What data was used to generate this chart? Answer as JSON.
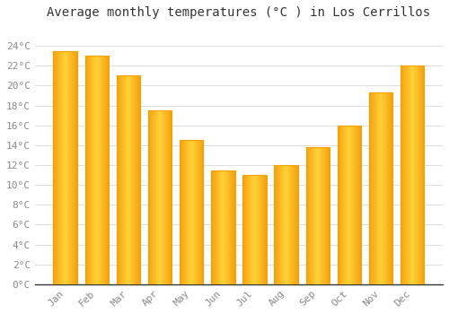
{
  "title": "Average monthly temperatures (°C ) in Los Cerrillos",
  "months": [
    "Jan",
    "Feb",
    "Mar",
    "Apr",
    "May",
    "Jun",
    "Jul",
    "Aug",
    "Sep",
    "Oct",
    "Nov",
    "Dec"
  ],
  "values": [
    23.5,
    23.0,
    21.0,
    17.5,
    14.5,
    11.5,
    11.0,
    12.0,
    13.8,
    16.0,
    19.3,
    22.0
  ],
  "bar_color_center": "#FFD050",
  "bar_color_edge": "#F5A000",
  "ylim": [
    0,
    26
  ],
  "yticks": [
    0,
    2,
    4,
    6,
    8,
    10,
    12,
    14,
    16,
    18,
    20,
    22,
    24
  ],
  "ytick_labels": [
    "0°C",
    "2°C",
    "4°C",
    "6°C",
    "8°C",
    "10°C",
    "12°C",
    "14°C",
    "16°C",
    "18°C",
    "20°C",
    "22°C",
    "24°C"
  ],
  "background_color": "#ffffff",
  "grid_color": "#dddddd",
  "title_fontsize": 10,
  "tick_fontsize": 8,
  "bar_width": 0.75,
  "tick_color": "#888888",
  "spine_color": "#333333"
}
